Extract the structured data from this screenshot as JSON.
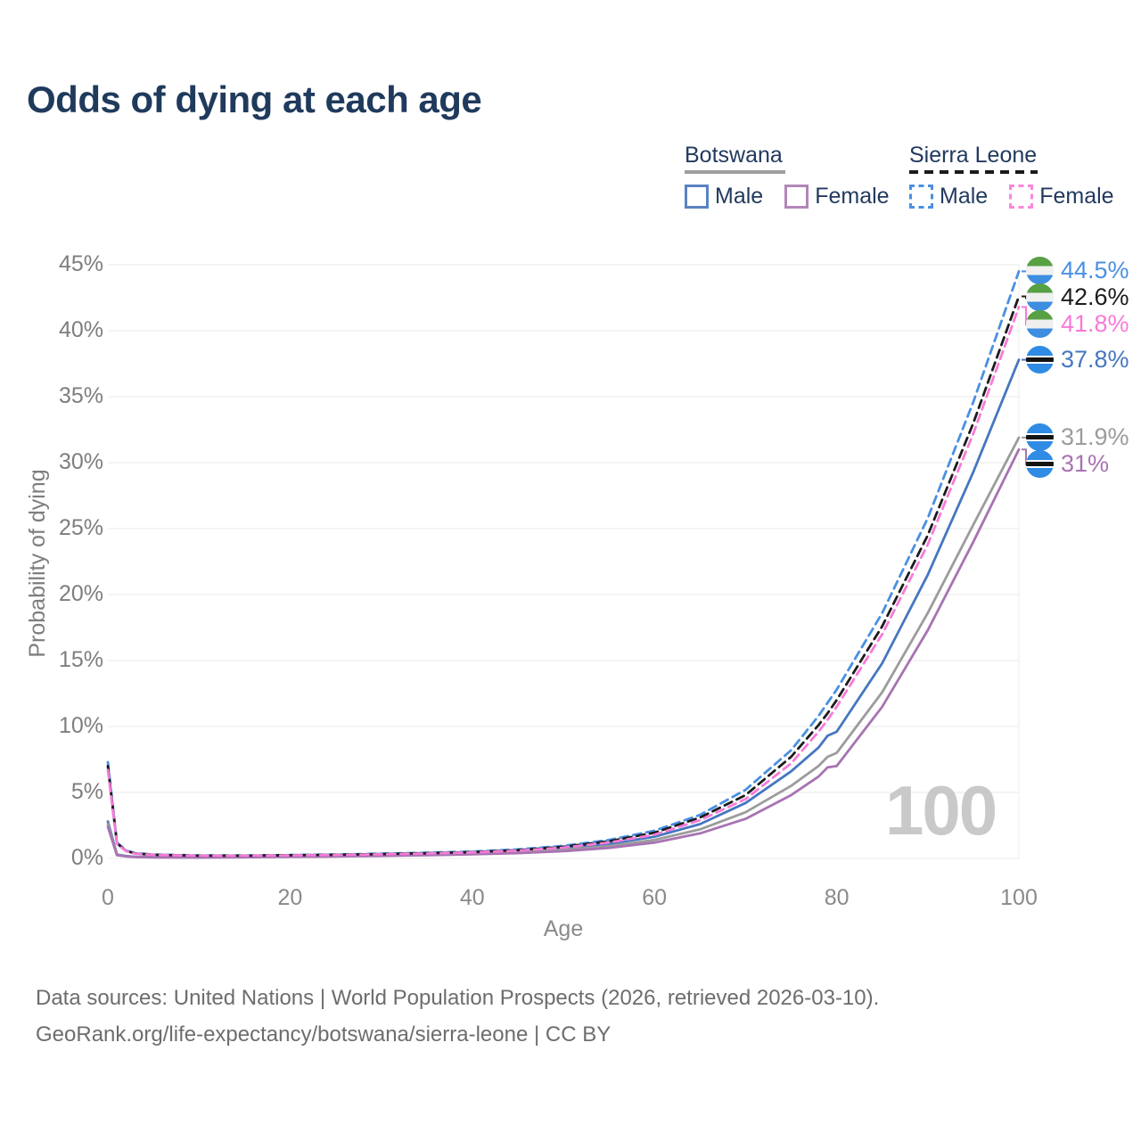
{
  "title": "Odds of dying at each age",
  "watermark": "100",
  "legend": {
    "groups": [
      {
        "name": "Botswana",
        "line_style": "solid",
        "underline_color": "#9e9e9e",
        "items": [
          {
            "label": "Male",
            "color": "#5a82c2"
          },
          {
            "label": "Female",
            "color": "#b287b8"
          }
        ]
      },
      {
        "name": "Sierra Leone",
        "line_style": "dashed",
        "underline_color": "#1a1a1a",
        "items": [
          {
            "label": "Male",
            "color": "#4a90e2"
          },
          {
            "label": "Female",
            "color": "#fb86dd"
          }
        ]
      }
    ]
  },
  "axes": {
    "y": {
      "label": "Probability of dying",
      "ticks": [
        "0%",
        "5%",
        "10%",
        "15%",
        "20%",
        "25%",
        "30%",
        "35%",
        "40%",
        "45%"
      ],
      "tick_values": [
        0,
        5,
        10,
        15,
        20,
        25,
        30,
        35,
        40,
        45
      ],
      "min": 0,
      "max": 45,
      "grid": true
    },
    "x": {
      "label": "Age",
      "ticks": [
        "0",
        "20",
        "40",
        "60",
        "80",
        "100"
      ],
      "tick_values": [
        0,
        20,
        40,
        60,
        80,
        100
      ],
      "min": 0,
      "max": 100,
      "grid": false
    }
  },
  "chart_data": {
    "type": "line",
    "title": "Odds of dying at each age",
    "xlabel": "Age",
    "ylabel": "Probability of dying",
    "xlim": [
      0,
      100
    ],
    "ylim": [
      0,
      45
    ],
    "unit": "%",
    "legend_position": "top-right",
    "ages": [
      0,
      1,
      2,
      3,
      5,
      10,
      15,
      20,
      25,
      30,
      35,
      40,
      45,
      50,
      55,
      60,
      65,
      70,
      75,
      78,
      79,
      80,
      85,
      90,
      95,
      100
    ],
    "series": [
      {
        "id": "botswana-male",
        "name": "Botswana Male",
        "country": "Botswana",
        "sex": "Male",
        "color": "#4577c1",
        "dashed": false,
        "flag": "botswana-flag",
        "end_label": "37.8%",
        "end_value": 37.8,
        "values": [
          2.8,
          0.3,
          0.18,
          0.13,
          0.1,
          0.09,
          0.11,
          0.16,
          0.21,
          0.27,
          0.33,
          0.42,
          0.55,
          0.75,
          1.1,
          1.65,
          2.6,
          4.2,
          6.6,
          8.4,
          9.3,
          9.6,
          14.8,
          21.5,
          29.3,
          37.8
        ]
      },
      {
        "id": "botswana-both",
        "name": "Botswana (both sexes)",
        "country": "Botswana",
        "sex": "Both",
        "color": "#9c9c9c",
        "dashed": false,
        "flag": "botswana-flag",
        "end_label": "31.9%",
        "end_value": 31.9,
        "values": [
          2.6,
          0.27,
          0.16,
          0.12,
          0.09,
          0.08,
          0.1,
          0.14,
          0.18,
          0.23,
          0.28,
          0.36,
          0.47,
          0.64,
          0.93,
          1.4,
          2.2,
          3.5,
          5.5,
          7.0,
          7.7,
          8.0,
          12.6,
          18.6,
          25.3,
          31.9
        ]
      },
      {
        "id": "botswana-female",
        "name": "Botswana Female",
        "country": "Botswana",
        "sex": "Female",
        "color": "#a873b2",
        "dashed": false,
        "flag": "botswana-flag",
        "end_label": "31%",
        "end_value": 31.0,
        "values": [
          2.4,
          0.24,
          0.15,
          0.11,
          0.08,
          0.07,
          0.09,
          0.12,
          0.15,
          0.19,
          0.24,
          0.31,
          0.4,
          0.55,
          0.8,
          1.2,
          1.9,
          3.0,
          4.8,
          6.2,
          6.9,
          7.0,
          11.5,
          17.3,
          24.0,
          31.0
        ]
      },
      {
        "id": "sierra-leone-male",
        "name": "Sierra Leone Male",
        "country": "Sierra Leone",
        "sex": "Male",
        "color": "#4a90e2",
        "dashed": true,
        "flag": "sierra-leone-flag",
        "end_label": "44.5%",
        "end_value": 44.5,
        "values": [
          7.3,
          1.2,
          0.6,
          0.4,
          0.3,
          0.22,
          0.22,
          0.26,
          0.3,
          0.36,
          0.43,
          0.52,
          0.68,
          0.95,
          1.4,
          2.1,
          3.3,
          5.2,
          8.2,
          10.8,
          11.8,
          12.8,
          18.6,
          25.8,
          34.6,
          44.5
        ]
      },
      {
        "id": "sierra-leone-both",
        "name": "Sierra Leone (both sexes)",
        "country": "Sierra Leone",
        "sex": "Both",
        "color": "#1c1c1c",
        "dashed": true,
        "flag": "sierra-leone-flag",
        "end_label": "42.6%",
        "end_value": 42.6,
        "values": [
          7.0,
          1.15,
          0.57,
          0.38,
          0.28,
          0.21,
          0.21,
          0.24,
          0.28,
          0.33,
          0.4,
          0.48,
          0.63,
          0.88,
          1.3,
          1.95,
          3.1,
          4.8,
          7.7,
          10.1,
          11.0,
          12.0,
          17.6,
          24.5,
          33.0,
          42.6
        ]
      },
      {
        "id": "sierra-leone-female",
        "name": "Sierra Leone Female",
        "country": "Sierra Leone",
        "sex": "Female",
        "color": "#f87ad8",
        "dashed": true,
        "flag": "sierra-leone-flag",
        "end_label": "41.8%",
        "end_value": 41.8,
        "values": [
          6.7,
          1.1,
          0.55,
          0.36,
          0.27,
          0.2,
          0.2,
          0.23,
          0.26,
          0.31,
          0.37,
          0.45,
          0.59,
          0.82,
          1.2,
          1.8,
          2.9,
          4.5,
          7.2,
          9.6,
          10.5,
          11.5,
          17.0,
          23.8,
          32.2,
          41.8
        ]
      }
    ]
  },
  "footer": {
    "source_line": "Data sources: United Nations | World Population Prospects (2026, retrieved 2026-03-10).",
    "link_line": "GeoRank.org/life-expectancy/botswana/sierra-leone | CC BY"
  },
  "colors": {
    "title_text": "#1f3a5c",
    "legend_text": "#223a5e",
    "axis_text": "#7e7e7e",
    "gridline": "#e9e9e9",
    "watermark": "#c9c9c9",
    "footer_text": "#6d6d6d"
  }
}
